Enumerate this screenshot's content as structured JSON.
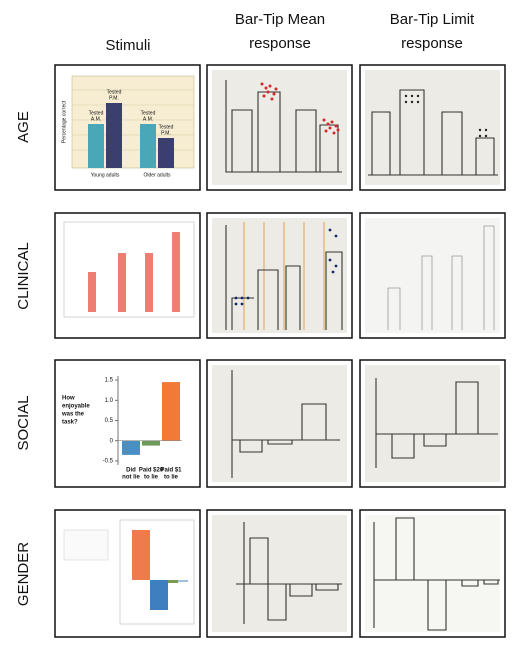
{
  "columns": [
    [
      "Stimuli"
    ],
    [
      "Bar-Tip Mean",
      "response"
    ],
    [
      "Bar-Tip Limit",
      "response"
    ]
  ],
  "rows": [
    "AGE",
    "CLINICAL",
    "SOCIAL",
    "GENDER"
  ],
  "age_stimulus": {
    "y_label": "Percentage correct",
    "bar_labels": [
      [
        "Tested",
        "A.M."
      ],
      [
        "Tested",
        "P.M."
      ],
      [
        "Tested",
        "A.M."
      ],
      [
        "Tested",
        "P.M."
      ]
    ],
    "categories": [
      "Young adults",
      "Older adults"
    ]
  },
  "social_stimulus": {
    "question": [
      "How",
      "enjoyable",
      "was the",
      "task?"
    ],
    "categories": [
      [
        "Did",
        "not lie"
      ],
      [
        "Paid $20",
        "to lie"
      ],
      [
        "Paid $1",
        "to lie"
      ]
    ],
    "values": [
      -0.35,
      -0.12,
      1.45
    ],
    "colors": [
      "#4a8fc4",
      "#6e9a5c",
      "#f07a36"
    ],
    "ylim": [
      -0.6,
      1.6
    ],
    "yticks": [
      1.5,
      {
        "value": 1.0,
        "label": "1.0"
      },
      0.5,
      0,
      -0.5
    ]
  }
}
